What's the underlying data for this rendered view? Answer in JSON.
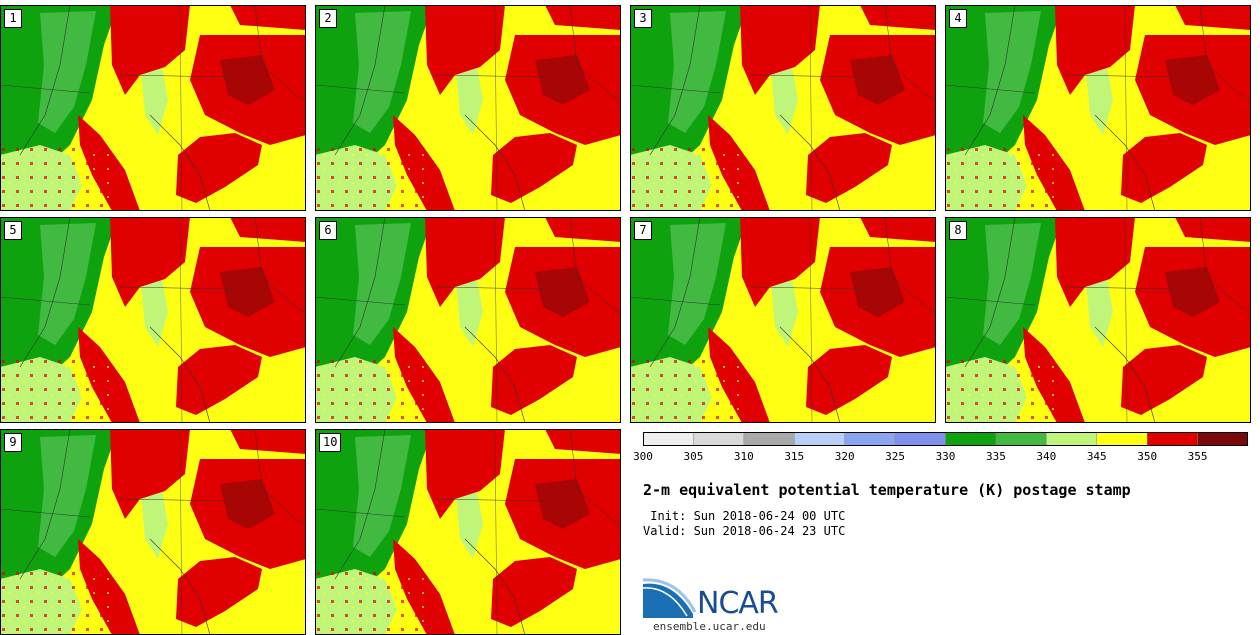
{
  "panels": [
    "1",
    "2",
    "3",
    "4",
    "5",
    "6",
    "7",
    "8",
    "9",
    "10"
  ],
  "colorbar": {
    "colors": [
      "#eeeeee",
      "#d9d9d9",
      "#a9a9a9",
      "#b9cff5",
      "#8aa5f0",
      "#7f90ee",
      "#0ea30e",
      "#42ba42",
      "#bff67a",
      "#ffff14",
      "#e00000",
      "#7a0a0a"
    ],
    "ticks": [
      "300",
      "305",
      "310",
      "315",
      "320",
      "325",
      "330",
      "335",
      "340",
      "345",
      "350",
      "355"
    ]
  },
  "title": "2-m equivalent potential temperature (K) postage stamp",
  "init": " Init: Sun 2018-06-24 00 UTC",
  "valid": "Valid: Sun 2018-06-24 23 UTC",
  "logo": {
    "word": "NCAR",
    "url": "ensemble.ucar.edu"
  }
}
